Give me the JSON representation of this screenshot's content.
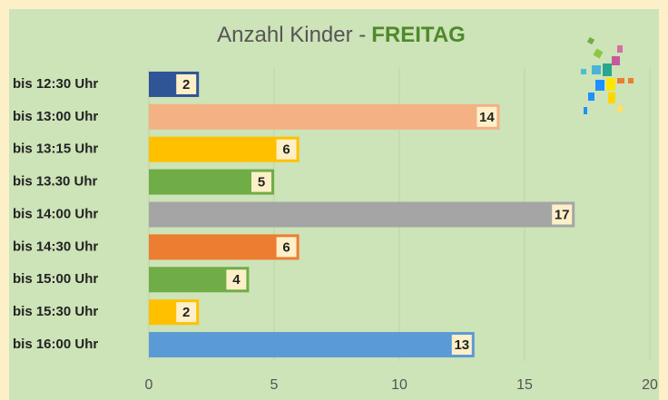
{
  "chart_data": {
    "type": "bar",
    "orientation": "horizontal",
    "title": "Anzahl Kinder -",
    "title_highlight": "FREITAG",
    "categories": [
      "bis 12:30 Uhr",
      "bis 13:00 Uhr",
      "bis 13:15 Uhr",
      "bis 13.30 Uhr",
      "bis 14:00 Uhr",
      "bis 14:30 Uhr",
      "bis 15:00 Uhr",
      "bis 15:30 Uhr",
      "bis 16:00 Uhr"
    ],
    "values": [
      2,
      14,
      6,
      5,
      17,
      6,
      4,
      2,
      13
    ],
    "colors": [
      "#2f5597",
      "#f4b183",
      "#ffc000",
      "#70ad47",
      "#a5a5a5",
      "#ed7d31",
      "#70ad47",
      "#ffc000",
      "#5b9bd5"
    ],
    "xlim": [
      0,
      20
    ],
    "xticks": [
      0,
      5,
      10,
      15,
      20
    ],
    "grid": true
  }
}
